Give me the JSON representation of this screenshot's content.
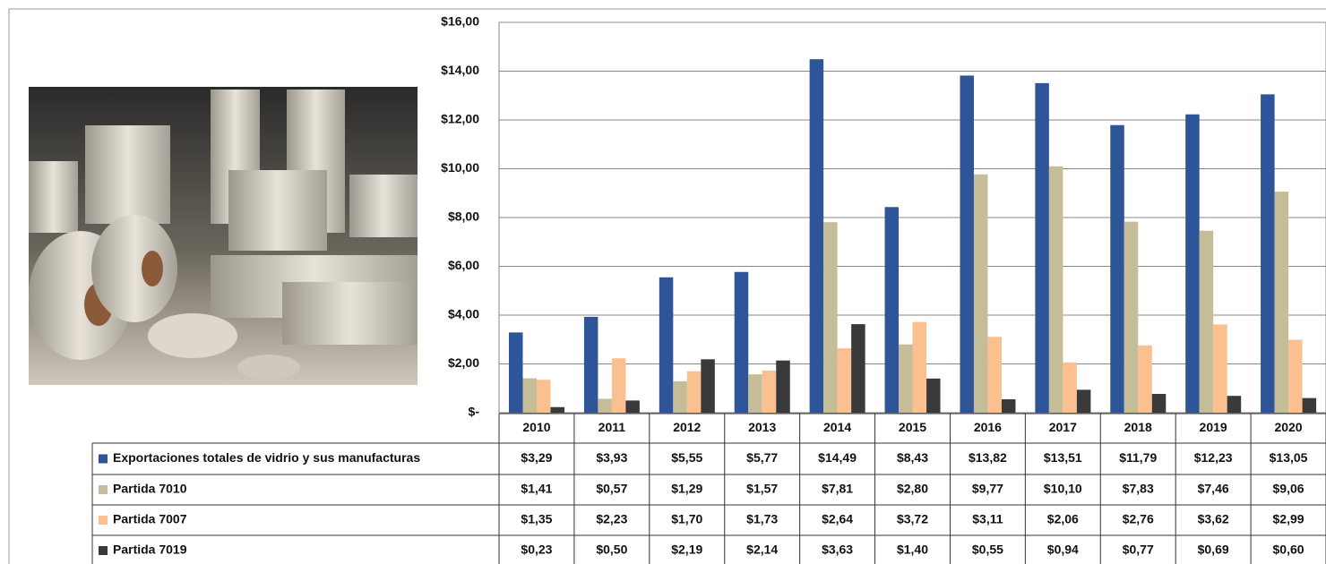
{
  "chart_data": {
    "type": "bar",
    "categories": [
      "2010",
      "2011",
      "2012",
      "2013",
      "2014",
      "2015",
      "2016",
      "2017",
      "2018",
      "2019",
      "2020"
    ],
    "series": [
      {
        "name": "Exportaciones totales de vidrio y sus manufacturas",
        "color": "#2e5597",
        "values": [
          3.29,
          3.93,
          5.55,
          5.77,
          14.49,
          8.43,
          13.82,
          13.51,
          11.79,
          12.23,
          13.05
        ],
        "value_labels": [
          "$3,29",
          "$3,93",
          "$5,55",
          "$5,77",
          "$14,49",
          "$8,43",
          "$13,82",
          "$13,51",
          "$11,79",
          "$12,23",
          "$13,05"
        ]
      },
      {
        "name": "Partida 7010",
        "color": "#c4bd97",
        "values": [
          1.41,
          0.57,
          1.29,
          1.57,
          7.81,
          2.8,
          9.77,
          10.1,
          7.83,
          7.46,
          9.06
        ],
        "value_labels": [
          "$1,41",
          "$0,57",
          "$1,29",
          "$1,57",
          "$7,81",
          "$2,80",
          "$9,77",
          "$10,10",
          "$7,83",
          "$7,46",
          "$9,06"
        ]
      },
      {
        "name": "Partida 7007",
        "color": "#fac090",
        "values": [
          1.35,
          2.23,
          1.7,
          1.73,
          2.64,
          3.72,
          3.11,
          2.06,
          2.76,
          3.62,
          2.99
        ],
        "value_labels": [
          "$1,35",
          "$2,23",
          "$1,70",
          "$1,73",
          "$2,64",
          "$3,72",
          "$3,11",
          "$2,06",
          "$2,76",
          "$3,62",
          "$2,99"
        ]
      },
      {
        "name": "Partida 7019",
        "color": "#3a3a3a",
        "values": [
          0.23,
          0.5,
          2.19,
          2.14,
          3.63,
          1.4,
          0.55,
          0.94,
          0.77,
          0.69,
          0.6
        ],
        "value_labels": [
          "$0,23",
          "$0,50",
          "$2,19",
          "$2,14",
          "$3,63",
          "$1,40",
          "$0,55",
          "$0,94",
          "$0,77",
          "$0,69",
          "$0,60"
        ]
      }
    ],
    "ylim": [
      0,
      16
    ],
    "yticks": [
      {
        "value": 0,
        "label": "$-"
      },
      {
        "value": 2,
        "label": "$2,00"
      },
      {
        "value": 4,
        "label": "$4,00"
      },
      {
        "value": 6,
        "label": "$6,00"
      },
      {
        "value": 8,
        "label": "$8,00"
      },
      {
        "value": 10,
        "label": "$10,00"
      },
      {
        "value": 12,
        "label": "$12,00"
      },
      {
        "value": 14,
        "label": "$14,00"
      },
      {
        "value": 16,
        "label": "$16,00"
      }
    ],
    "grid": true
  }
}
